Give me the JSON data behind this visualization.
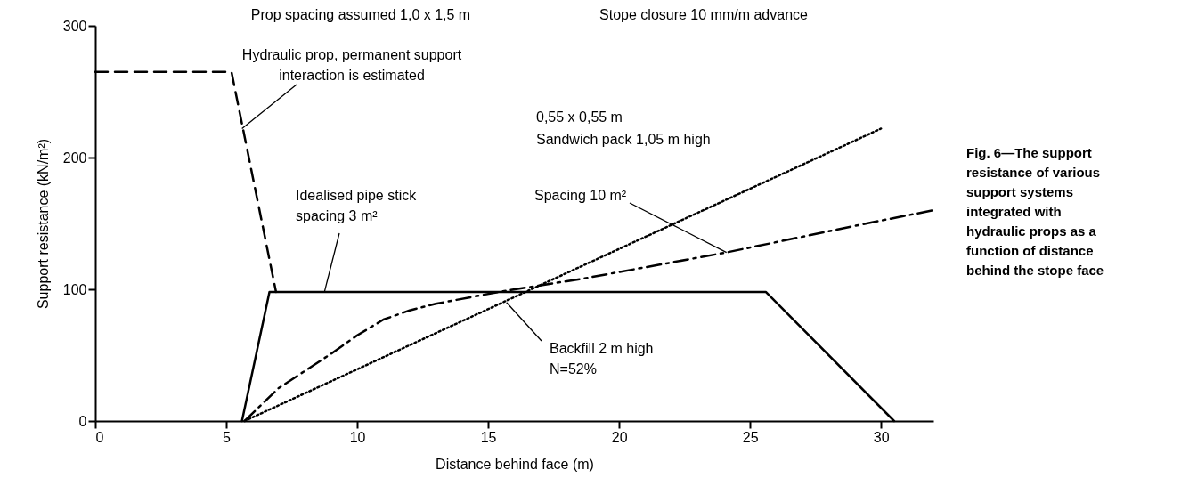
{
  "chart_data": {
    "type": "line",
    "xlabel": "Distance behind face (m)",
    "ylabel": "Support resistance (kN/m²)",
    "xlim": [
      0,
      32
    ],
    "xticks": [
      0,
      5,
      10,
      15,
      20,
      25,
      30
    ],
    "ylim": [
      0,
      300
    ],
    "yticks": [
      0,
      100,
      200,
      300
    ],
    "series": [
      {
        "color": "#000000",
        "line_style": "dashed",
        "x": [
          0,
          5.2,
          6.9
        ],
        "values": [
          265,
          265,
          98
        ]
      },
      {
        "color": "#000000",
        "line_style": "solid",
        "x": [
          5.6,
          6.65,
          25.6,
          30.5
        ],
        "values": [
          0,
          98,
          98,
          0
        ]
      },
      {
        "color": "#000000",
        "line_style": "dashdot",
        "x": [
          5.7,
          7,
          8,
          9,
          10,
          11,
          12,
          13,
          15.4,
          18.6,
          24.1,
          29.7,
          32
        ],
        "values": [
          0,
          25,
          38,
          51,
          65,
          77,
          84,
          89,
          98,
          108,
          128,
          151,
          160
        ]
      },
      {
        "color": "#000000",
        "line_style": "dotted",
        "x": [
          5.7,
          30
        ],
        "values": [
          0,
          222
        ]
      }
    ],
    "annotations": [
      "Prop spacing assumed 1,0 x 1,5 m",
      "Stope closure 10 mm/m advance",
      {
        "text": "Hydraulic prop, permanent support\ninteraction is estimated",
        "x": 5.6,
        "y": 222
      },
      {
        "text": "Idealised pipe stick\nspacing 3 m²",
        "x": 8.75,
        "y": 98
      },
      "0,55 x 0,55 m\nSandwich pack 1,05 m high",
      {
        "text": "Spacing 10 m²",
        "x": 24.1,
        "y": 128
      },
      {
        "text": "Backfill 2 m high\nN=52%",
        "x": 15.7,
        "y": 90
      },
      "Fig. 6—The support resistance of various support systems integrated with hydraulic props as a function of distance behind the stope face"
    ]
  }
}
